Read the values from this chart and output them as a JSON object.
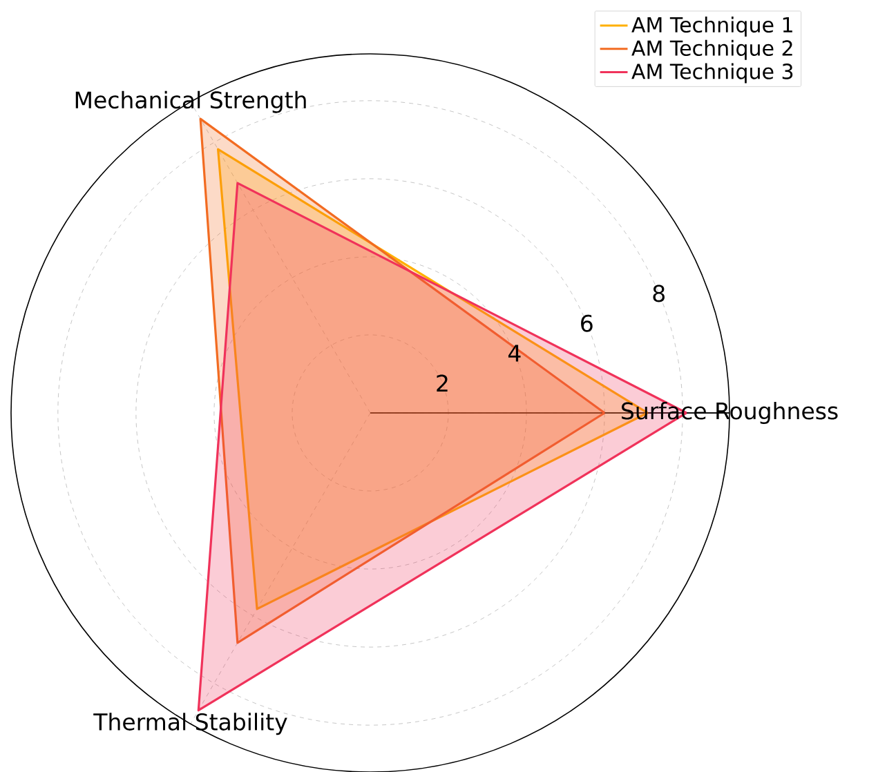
{
  "chart_data": {
    "type": "radar",
    "categories": [
      "Surface Roughness",
      "Thermal Stability",
      "Mechanical Strength"
    ],
    "series": [
      {
        "name": "AM Technique 1",
        "color": "#ffb000",
        "values": [
          7.1,
          5.8,
          7.8
        ]
      },
      {
        "name": "AM Technique 2",
        "color": "#f26b21",
        "values": [
          6.0,
          6.8,
          8.7
        ]
      },
      {
        "name": "AM Technique 3",
        "color": "#f0325a",
        "values": [
          8.1,
          8.8,
          6.8
        ]
      }
    ],
    "ylim": [
      0,
      9.2
    ],
    "yticks": [
      2,
      4,
      6,
      8
    ],
    "grid": true,
    "legend": "top right"
  }
}
